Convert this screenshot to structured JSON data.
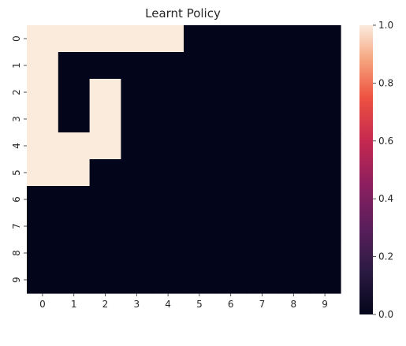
{
  "chart_data": {
    "type": "heatmap",
    "title": "Learnt Policy",
    "x_ticks": [
      "0",
      "1",
      "2",
      "3",
      "4",
      "5",
      "6",
      "7",
      "8",
      "9"
    ],
    "y_ticks": [
      "0",
      "1",
      "2",
      "3",
      "4",
      "5",
      "6",
      "7",
      "8",
      "9"
    ],
    "matrix": [
      [
        1,
        1,
        1,
        1,
        1,
        0,
        0,
        0,
        0,
        0
      ],
      [
        1,
        0,
        0,
        0,
        0,
        0,
        0,
        0,
        0,
        0
      ],
      [
        1,
        0,
        1,
        0,
        0,
        0,
        0,
        0,
        0,
        0
      ],
      [
        1,
        0,
        1,
        0,
        0,
        0,
        0,
        0,
        0,
        0
      ],
      [
        1,
        1,
        1,
        0,
        0,
        0,
        0,
        0,
        0,
        0
      ],
      [
        1,
        1,
        0,
        0,
        0,
        0,
        0,
        0,
        0,
        0
      ],
      [
        0,
        0,
        0,
        0,
        0,
        0,
        0,
        0,
        0,
        0
      ],
      [
        0,
        0,
        0,
        0,
        0,
        0,
        0,
        0,
        0,
        0
      ],
      [
        0,
        0,
        0,
        0,
        0,
        0,
        0,
        0,
        0,
        0
      ],
      [
        0,
        0,
        0,
        0,
        0,
        0,
        0,
        0,
        0,
        0
      ]
    ],
    "value_range": [
      0,
      1
    ],
    "colorbar": {
      "ticks": [
        "0.0",
        "0.2",
        "0.4",
        "0.6",
        "0.8",
        "1.0"
      ],
      "tick_values": [
        0,
        0.2,
        0.4,
        0.6,
        0.8,
        1.0
      ],
      "colormap": "rocket",
      "stops": [
        {
          "value": 0.0,
          "color": "#03051a"
        },
        {
          "value": 0.15,
          "color": "#2b1a42"
        },
        {
          "value": 0.3,
          "color": "#5a1e5c"
        },
        {
          "value": 0.45,
          "color": "#8d1f5f"
        },
        {
          "value": 0.6,
          "color": "#c5284f"
        },
        {
          "value": 0.75,
          "color": "#ee5240"
        },
        {
          "value": 0.88,
          "color": "#f6a47e"
        },
        {
          "value": 1.0,
          "color": "#faebdd"
        }
      ]
    },
    "low_color": "#03051a",
    "high_color": "#faebdd",
    "grid": false,
    "legend": "colorbar-right"
  }
}
